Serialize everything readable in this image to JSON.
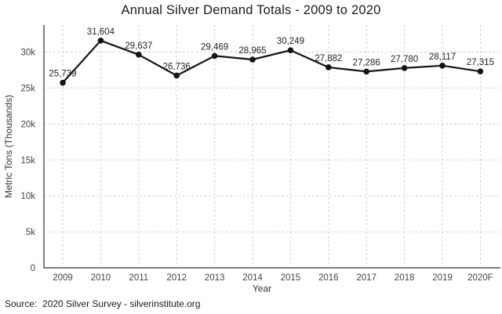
{
  "title": "Annual Silver Demand Totals - 2009 to 2020",
  "source_note": "Source:  2020 Silver Survey - silverinstitute.org",
  "chart_data": {
    "type": "line",
    "title": "Annual Silver Demand Totals - 2009 to 2020",
    "xlabel": "Year",
    "ylabel": "Metric Tons (Thousands)",
    "categories": [
      "2009",
      "2010",
      "2011",
      "2012",
      "2013",
      "2014",
      "2015",
      "2016",
      "2017",
      "2018",
      "2019",
      "2020F"
    ],
    "values": [
      25739,
      31604,
      29637,
      26736,
      29469,
      28965,
      30249,
      27882,
      27286,
      27780,
      28117,
      27315
    ],
    "point_labels": [
      "25,739",
      "31,604",
      "29,637",
      "26,736",
      "29,469",
      "28,965",
      "30,249",
      "27,882",
      "27,286",
      "27,780",
      "28,117",
      "27,315"
    ],
    "y_ticks": [
      {
        "value": 0,
        "label": "0"
      },
      {
        "value": 5000,
        "label": "5k"
      },
      {
        "value": 10000,
        "label": "10k"
      },
      {
        "value": 15000,
        "label": "15k"
      },
      {
        "value": 20000,
        "label": "20k"
      },
      {
        "value": 25000,
        "label": "25k"
      },
      {
        "value": 30000,
        "label": "30k"
      }
    ],
    "ylim": [
      0,
      33800
    ],
    "grid": "dashed-both",
    "legend": "none",
    "colors": {
      "line": "#141414",
      "marker": "#141414",
      "grid": "#cccccc",
      "axis": "#7f7f7f",
      "tick_text": "#444444",
      "point_label_text": "#222222",
      "title_text": "#1a1a1a"
    }
  }
}
